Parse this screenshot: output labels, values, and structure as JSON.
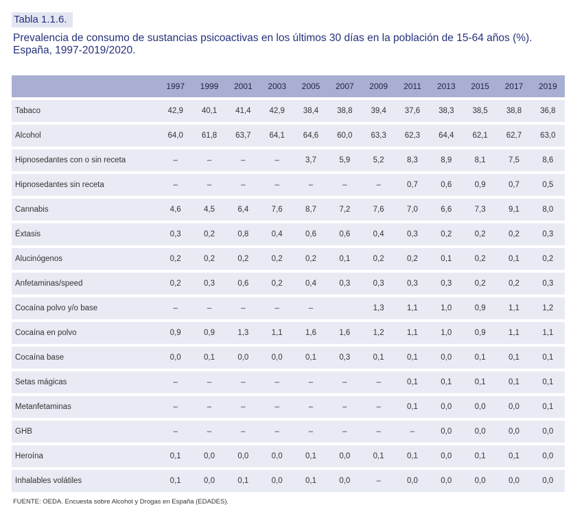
{
  "table_label": "Tabla 1.1.6.",
  "title": "Prevalencia de consumo de sustancias psicoactivas en los últimos 30 días en la población de 15-64 años (%). España, 1997-2019/2020.",
  "source": "FUENTE: OEDA. Encuesta sobre Alcohol y Drogas en España (EDADES).",
  "header": {
    "first": "",
    "years": [
      "1997",
      "1999",
      "2001",
      "2003",
      "2005",
      "2007",
      "2009",
      "2011",
      "2013",
      "2015",
      "2017",
      "2019"
    ]
  },
  "rows": [
    {
      "name": "Tabaco",
      "values": [
        "42,9",
        "40,1",
        "41,4",
        "42,9",
        "38,4",
        "38,8",
        "39,4",
        "37,6",
        "38,3",
        "38,5",
        "38,8",
        "36,8"
      ]
    },
    {
      "name": "Alcohol",
      "values": [
        "64,0",
        "61,8",
        "63,7",
        "64,1",
        "64,6",
        "60,0",
        "63,3",
        "62,3",
        "64,4",
        "62,1",
        "62,7",
        "63,0"
      ]
    },
    {
      "name": "Hipnosedantes con o sin receta",
      "values": [
        "–",
        "–",
        "–",
        "–",
        "3,7",
        "5,9",
        "5,2",
        "8,3",
        "8,9",
        "8,1",
        "7,5",
        "8,6"
      ]
    },
    {
      "name": "Hipnosedantes sin receta",
      "values": [
        "–",
        "–",
        "–",
        "–",
        "–",
        "–",
        "–",
        "0,7",
        "0,6",
        "0,9",
        "0,7",
        "0,5"
      ]
    },
    {
      "name": "Cannabis",
      "values": [
        "4,6",
        "4,5",
        "6,4",
        "7,6",
        "8,7",
        "7,2",
        "7,6",
        "7,0",
        "6,6",
        "7,3",
        "9,1",
        "8,0"
      ]
    },
    {
      "name": "Éxtasis",
      "values": [
        "0,3",
        "0,2",
        "0,8",
        "0,4",
        "0,6",
        "0,6",
        "0,4",
        "0,3",
        "0,2",
        "0,2",
        "0,2",
        "0,3"
      ]
    },
    {
      "name": "Alucinógenos",
      "values": [
        "0,2",
        "0,2",
        "0,2",
        "0,2",
        "0,2",
        "0,1",
        "0,2",
        "0,2",
        "0,1",
        "0,2",
        "0,1",
        "0,2"
      ]
    },
    {
      "name": "Anfetaminas/speed",
      "values": [
        "0,2",
        "0,3",
        "0,6",
        "0,2",
        "0,4",
        "0,3",
        "0,3",
        "0,3",
        "0,3",
        "0,2",
        "0,2",
        "0,3"
      ]
    },
    {
      "name": "Cocaína polvo y/o base",
      "values": [
        "–",
        "–",
        "–",
        "–",
        "–",
        "",
        "1,3",
        "1,1",
        "1,0",
        "0,9",
        "1,1",
        "1,2"
      ]
    },
    {
      "name": "Cocaína en polvo",
      "values": [
        "0,9",
        "0,9",
        "1,3",
        "1,1",
        "1,6",
        "1,6",
        "1,2",
        "1,1",
        "1,0",
        "0,9",
        "1,1",
        "1,1"
      ]
    },
    {
      "name": "Cocaína base",
      "values": [
        "0,0",
        "0,1",
        "0,0",
        "0,0",
        "0,1",
        "0,3",
        "0,1",
        "0,1",
        "0,0",
        "0,1",
        "0,1",
        "0,1"
      ]
    },
    {
      "name": "Setas mágicas",
      "values": [
        "–",
        "–",
        "–",
        "–",
        "–",
        "–",
        "–",
        "0,1",
        "0,1",
        "0,1",
        "0,1",
        "0,1"
      ]
    },
    {
      "name": "Metanfetaminas",
      "values": [
        "–",
        "–",
        "–",
        "–",
        "–",
        "–",
        "–",
        "0,1",
        "0,0",
        "0,0",
        "0,0",
        "0,1"
      ]
    },
    {
      "name": "GHB",
      "values": [
        "–",
        "–",
        "–",
        "–",
        "–",
        "–",
        "–",
        "–",
        "0,0",
        "0,0",
        "0,0",
        "0,0"
      ]
    },
    {
      "name": "Heroína",
      "values": [
        "0,1",
        "0,0",
        "0,0",
        "0,0",
        "0,1",
        "0,0",
        "0,1",
        "0,1",
        "0,0",
        "0,1",
        "0,1",
        "0,0"
      ]
    },
    {
      "name": "Inhalables volátiles",
      "values": [
        "0,1",
        "0,0",
        "0,1",
        "0,0",
        "0,1",
        "0,0",
        "–",
        "0,0",
        "0,0",
        "0,0",
        "0,0",
        "0,0"
      ]
    }
  ]
}
